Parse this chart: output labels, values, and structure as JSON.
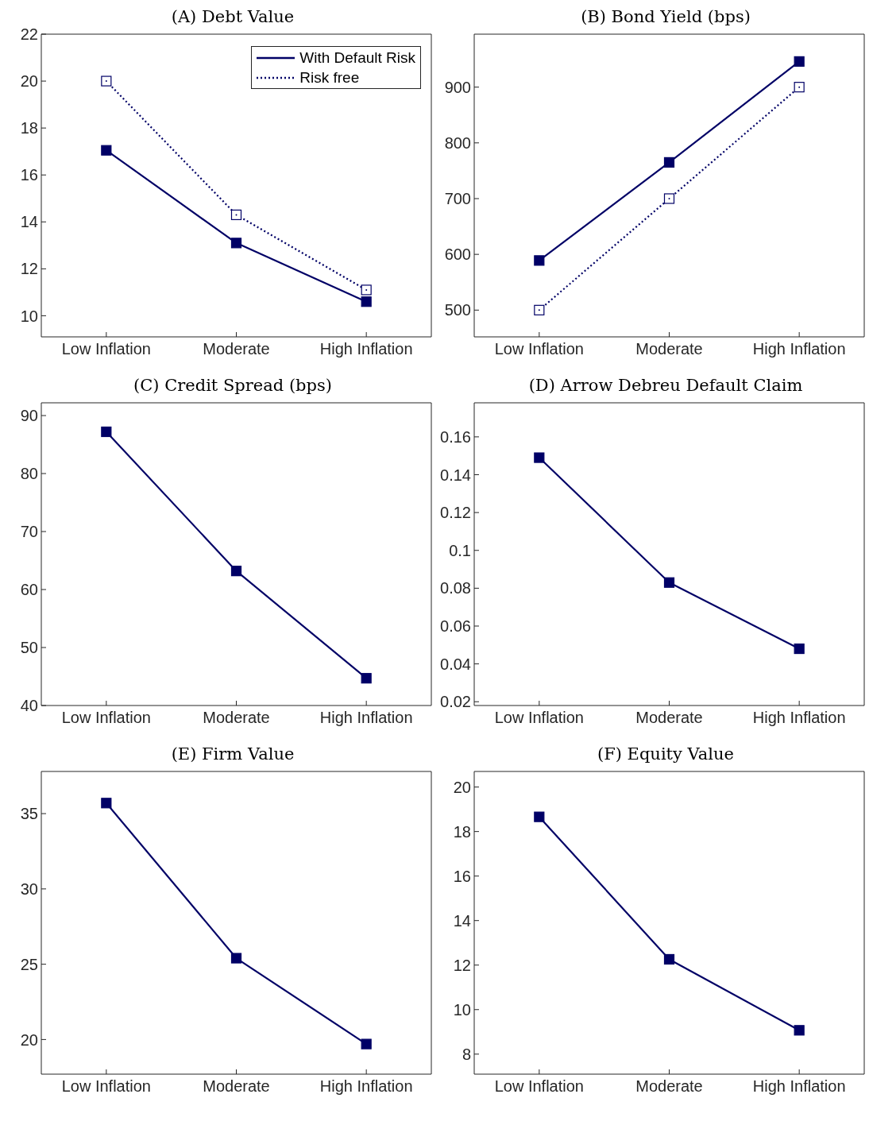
{
  "chart_data": [
    {
      "type": "line",
      "title": "(A) Debt Value",
      "categories": [
        "Low Inflation",
        "Moderate",
        "High Inflation"
      ],
      "series": [
        {
          "name": "With Default Risk",
          "color": "#000066",
          "values": [
            17.05,
            13.1,
            10.6
          ],
          "line_style": "solid",
          "marker": "square"
        },
        {
          "name": "Risk free",
          "color": "#000066",
          "values": [
            20,
            14.3,
            11.1
          ],
          "line_style": "dotted",
          "marker": "square"
        }
      ],
      "ylim": [
        9.1,
        22
      ],
      "yticks": [
        10,
        12,
        14,
        16,
        18,
        20,
        22
      ],
      "legend": "top right",
      "grid": false
    },
    {
      "type": "line",
      "title": "(B) Bond Yield (bps)",
      "categories": [
        "Low Inflation",
        "Moderate",
        "High Inflation"
      ],
      "series": [
        {
          "color": "#000066",
          "values": [
            589,
            765,
            946
          ],
          "line_style": "solid",
          "marker": "square"
        },
        {
          "color": "#000066",
          "values": [
            500,
            700,
            900
          ],
          "line_style": "dotted",
          "marker": "square"
        }
      ],
      "ylim": [
        452,
        995
      ],
      "yticks": [
        500,
        600,
        700,
        800,
        900
      ],
      "grid": false
    },
    {
      "type": "line",
      "title": "(C) Credit Spread (bps)",
      "categories": [
        "Low Inflation",
        "Moderate",
        "High Inflation"
      ],
      "series": [
        {
          "color": "#000066",
          "values": [
            87.2,
            63.2,
            44.7
          ],
          "line_style": "solid",
          "marker": "square"
        }
      ],
      "ylim": [
        40,
        92.2
      ],
      "yticks": [
        40,
        50,
        60,
        70,
        80,
        90
      ],
      "grid": false
    },
    {
      "type": "line",
      "title": "(D) Arrow Debreu Default Claim",
      "categories": [
        "Low Inflation",
        "Moderate",
        "High Inflation"
      ],
      "series": [
        {
          "color": "#000066",
          "values": [
            0.149,
            0.083,
            0.048
          ],
          "line_style": "solid",
          "marker": "square"
        }
      ],
      "ylim": [
        0.018,
        0.178
      ],
      "yticks": [
        0.02,
        0.04,
        0.06,
        0.08,
        0.1,
        0.12,
        0.14,
        0.16
      ],
      "grid": false
    },
    {
      "type": "line",
      "title": "(E) Firm Value",
      "categories": [
        "Low Inflation",
        "Moderate",
        "High Inflation"
      ],
      "series": [
        {
          "color": "#000066",
          "values": [
            35.7,
            25.4,
            19.7
          ],
          "line_style": "solid",
          "marker": "square"
        }
      ],
      "ylim": [
        17.7,
        37.8
      ],
      "yticks": [
        20,
        25,
        30,
        35
      ],
      "grid": false
    },
    {
      "type": "line",
      "title": "(F) Equity Value",
      "categories": [
        "Low Inflation",
        "Moderate",
        "High Inflation"
      ],
      "series": [
        {
          "color": "#000066",
          "values": [
            18.66,
            12.26,
            9.07
          ],
          "line_style": "solid",
          "marker": "square"
        }
      ],
      "ylim": [
        7.1,
        20.7
      ],
      "yticks": [
        8,
        10,
        12,
        14,
        16,
        18,
        20
      ],
      "grid": false
    }
  ]
}
